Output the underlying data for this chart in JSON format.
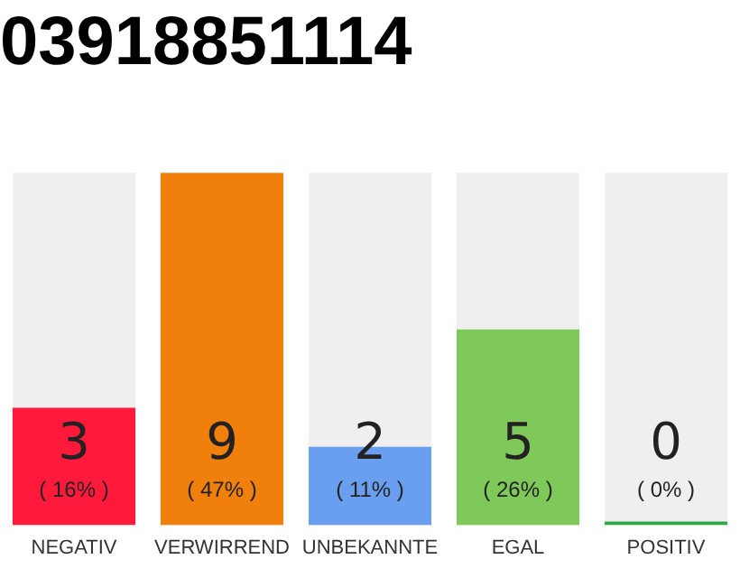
{
  "chart_data": {
    "type": "bar",
    "title": "03918851114",
    "categories": [
      "NEGATIV",
      "VERWIRREND",
      "UNBEKANNTE",
      "EGAL",
      "POSITIV"
    ],
    "values": [
      3,
      9,
      2,
      5,
      0
    ],
    "colors": [
      "#ff1a3c",
      "#f07f0c",
      "#6a9ff0",
      "#7ec95a",
      "#2eaa4a"
    ],
    "value_labels": [
      "3\n( 16% )",
      "9\n( 47% )",
      "2\n( 11% )",
      "5\n( 26% )",
      "0\n( 0% )"
    ],
    "tick_labels": "x",
    "grid": false,
    "legend": false
  }
}
